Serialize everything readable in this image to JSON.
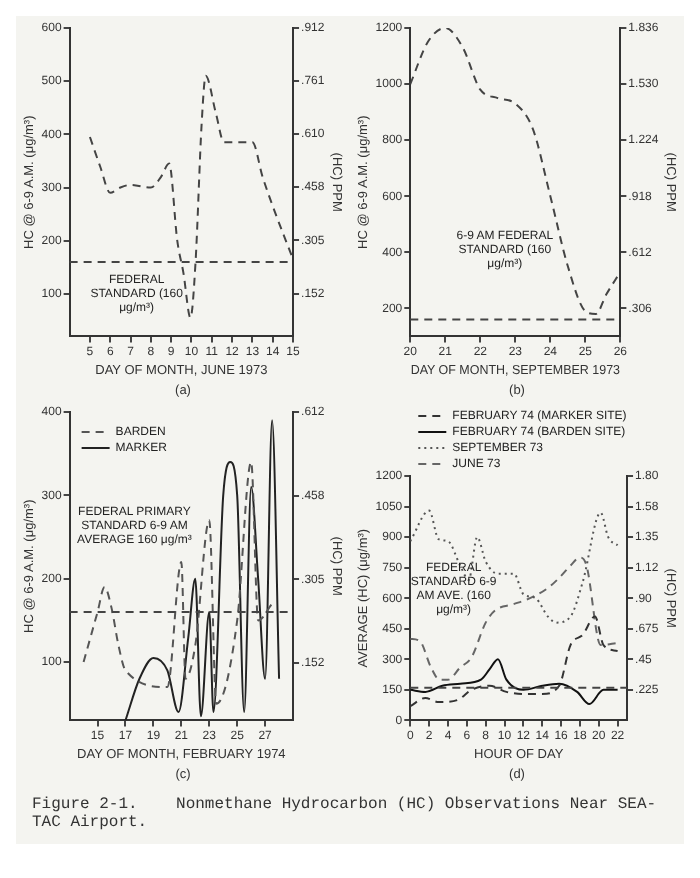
{
  "chart_data": [
    {
      "type": "line",
      "title": "(a)",
      "xlabel": "DAY OF MONTH, JUNE 1973",
      "ylabel": "HC @ 6-9 A.M. (μg/m³)",
      "y2label": "(HC) PPM",
      "line_style": "dashed",
      "series": [
        {
          "color": "#444444",
          "x": [
            5,
            5.5,
            6,
            6.5,
            7,
            8,
            8.5,
            8.9,
            9.3,
            9.6,
            9.95,
            10.2,
            10.5,
            10.7,
            11.2,
            11.6,
            12,
            13,
            13.5,
            14,
            15
          ],
          "values": [
            395,
            340,
            290,
            300,
            305,
            300,
            320,
            345,
            200,
            140,
            55,
            160,
            420,
            510,
            440,
            385,
            385,
            385,
            320,
            265,
            165
          ]
        }
      ],
      "xlim": [
        4,
        15
      ],
      "xticks": [
        5,
        6,
        7,
        8,
        9,
        10,
        11,
        12,
        13,
        14,
        15
      ],
      "ylim": [
        20,
        600
      ],
      "yticks": [
        100,
        200,
        300,
        400,
        500,
        600
      ],
      "y2lim": [
        0.0304,
        0.912
      ],
      "y2ticks": [
        {
          "value": 0.152,
          "label": ".152"
        },
        {
          "value": 0.305,
          "label": ".305"
        },
        {
          "value": 0.458,
          "label": ".458"
        },
        {
          "value": 0.61,
          "label": ".610"
        },
        {
          "value": 0.761,
          "label": ".761"
        },
        {
          "value": 0.912,
          "label": ".912"
        }
      ],
      "ref_lines": [
        {
          "axis": "y",
          "value": 160,
          "color": "#444444",
          "line_style": "dashed"
        }
      ],
      "annotations": [
        "FEDERAL STANDARD (160 μg/m³)"
      ]
    },
    {
      "type": "line",
      "title": "(b)",
      "xlabel": "DAY OF MONTH, SEPTEMBER 1973",
      "ylabel": "HC @ 6-9 A.M. (μg/m³)",
      "y2label": "(HC) PPM",
      "line_style": "dashed",
      "series": [
        {
          "color": "#444444",
          "x": [
            20,
            20.5,
            21,
            21.5,
            22,
            22.5,
            23,
            23.5,
            24,
            24.5,
            25,
            25.3,
            25.6,
            26
          ],
          "values": [
            1000,
            1150,
            1200,
            1130,
            980,
            950,
            930,
            840,
            600,
            350,
            190,
            180,
            250,
            330
          ]
        }
      ],
      "xlim": [
        20,
        26
      ],
      "xticks": [
        20,
        21,
        22,
        23,
        24,
        25,
        26
      ],
      "ylim": [
        100,
        1200
      ],
      "yticks": [
        200,
        400,
        600,
        800,
        1000,
        1200
      ],
      "y2lim": [
        0.153,
        1.836
      ],
      "y2ticks": [
        {
          "value": 0.306,
          "label": ".306"
        },
        {
          "value": 0.612,
          "label": ".612"
        },
        {
          "value": 0.918,
          "label": ".918"
        },
        {
          "value": 1.224,
          "label": "1.224"
        },
        {
          "value": 1.53,
          "label": "1.530"
        },
        {
          "value": 1.836,
          "label": "1.836"
        }
      ],
      "ref_lines": [
        {
          "axis": "y",
          "value": 160,
          "color": "#444444",
          "line_style": "dashed"
        }
      ],
      "annotations": [
        "6-9 AM FEDERAL STANDARD (160 μg/m³)"
      ]
    },
    {
      "type": "line",
      "title": "(c)",
      "xlabel": "DAY OF MONTH, FEBRUARY 1974",
      "ylabel": "HC @ 6-9 A.M. (μg/m³)",
      "y2label": "(HC) PPM",
      "legend": "top left",
      "series": [
        {
          "name": "BARDEN",
          "color": "#555555",
          "line_style": "dashed",
          "x": [
            14,
            15,
            15.5,
            16,
            16.5,
            17,
            20,
            21,
            21.3,
            22,
            23,
            23.5,
            25,
            26,
            26.5,
            27.5
          ],
          "values": [
            100,
            160,
            190,
            165,
            120,
            90,
            70,
            220,
            80,
            120,
            270,
            50,
            150,
            340,
            150,
            170
          ]
        },
        {
          "name": "MARKER",
          "color": "#222222",
          "line_style": "solid",
          "x": [
            17,
            18,
            19,
            20,
            20.8,
            21.5,
            22,
            22.4,
            23,
            23.3,
            24,
            24.5,
            25,
            25.5,
            26,
            26.5,
            27,
            27.5,
            28
          ],
          "values": [
            30,
            80,
            105,
            90,
            40,
            130,
            200,
            35,
            160,
            40,
            300,
            340,
            300,
            40,
            310,
            200,
            80,
            390,
            80
          ]
        }
      ],
      "xlim": [
        13,
        29
      ],
      "xticks": [
        15,
        17,
        19,
        21,
        23,
        25,
        27
      ],
      "ylim": [
        30,
        400
      ],
      "yticks": [
        100,
        200,
        300,
        400
      ],
      "y2lim": [
        0.0459,
        0.612
      ],
      "y2ticks": [
        {
          "value": 0.152,
          "label": ".152"
        },
        {
          "value": 0.305,
          "label": ".305"
        },
        {
          "value": 0.458,
          "label": ".458"
        },
        {
          "value": 0.612,
          "label": ".612"
        }
      ],
      "ref_lines": [
        {
          "axis": "y",
          "value": 160,
          "color": "#444444",
          "line_style": "dashed"
        }
      ],
      "annotations": [
        "FEDERAL PRIMARY STANDARD 6-9 AM AVERAGE 160 μg/m³"
      ]
    },
    {
      "type": "line",
      "title": "(d)",
      "xlabel": "HOUR OF DAY",
      "ylabel": "AVERAGE (HC) (μg/m³)",
      "y2label": "(HC) PPM",
      "legend": "top",
      "series": [
        {
          "name": "FEBRUARY 74 (MARKER SITE)",
          "color": "#333333",
          "line_style": "dashed",
          "x": [
            0,
            1.6,
            3,
            5,
            6.5,
            8.4,
            10.2,
            12,
            14,
            15.8,
            17,
            18.3,
            19.6,
            20.5,
            22
          ],
          "values": [
            70,
            110,
            90,
            100,
            150,
            170,
            140,
            130,
            130,
            170,
            370,
            420,
            510,
            370,
            340
          ]
        },
        {
          "name": "FEBRUARY 74 (BARDEN SITE)",
          "color": "#111111",
          "line_style": "solid",
          "x": [
            0,
            1.6,
            3.4,
            5.3,
            7.5,
            8.4,
            9.3,
            10.2,
            12,
            14,
            15.8,
            17.7,
            19,
            20.5,
            22
          ],
          "values": [
            150,
            140,
            170,
            180,
            200,
            250,
            300,
            200,
            150,
            170,
            180,
            140,
            80,
            150,
            150
          ]
        },
        {
          "name": "SEPTEMBER 73",
          "color": "#555555",
          "line_style": "dotted",
          "x": [
            0,
            2,
            3,
            4,
            5.3,
            6.2,
            7.1,
            8,
            9.3,
            11,
            12,
            13.3,
            14.6,
            15.5,
            17,
            18.3,
            20.2,
            21,
            22
          ],
          "values": [
            880,
            1030,
            890,
            880,
            760,
            690,
            900,
            780,
            720,
            720,
            620,
            600,
            510,
            480,
            510,
            680,
            1020,
            900,
            860
          ]
        },
        {
          "name": "JUNE 73",
          "color": "#666666",
          "line_style": "dashed",
          "x": [
            0,
            1,
            2.2,
            3.1,
            4,
            5.3,
            6.5,
            8,
            9,
            10.9,
            12.7,
            14.6,
            15.8,
            17,
            18,
            18.7,
            20.2,
            22
          ],
          "values": [
            400,
            390,
            260,
            200,
            200,
            260,
            310,
            480,
            540,
            570,
            600,
            650,
            700,
            760,
            800,
            760,
            370,
            380
          ]
        }
      ],
      "xlim": [
        0,
        23
      ],
      "xticks": [
        0,
        2,
        4,
        6,
        8,
        10,
        12,
        14,
        16,
        18,
        20,
        22
      ],
      "ylim": [
        0,
        1200
      ],
      "yticks": [
        0,
        150,
        300,
        450,
        600,
        750,
        900,
        1050,
        1200
      ],
      "y2lim": [
        0,
        1.8
      ],
      "y2ticks": [
        {
          "value": 0.225,
          "label": ".225"
        },
        {
          "value": 0.45,
          "label": ".45"
        },
        {
          "value": 0.675,
          "label": ".675"
        },
        {
          "value": 0.9,
          "label": ".90"
        },
        {
          "value": 1.125,
          "label": "1.12"
        },
        {
          "value": 1.35,
          "label": "1.35"
        },
        {
          "value": 1.575,
          "label": "1.58"
        },
        {
          "value": 1.8,
          "label": "1.80"
        }
      ],
      "ref_lines": [
        {
          "axis": "y",
          "value": 160,
          "color": "#444444",
          "line_style": "dashed"
        }
      ],
      "annotations": [
        "FEDERAL STANDARD 6-9 AM AVE. (160 μg/m³)",
        "Figure 2-1.    Nonmethane Hydrocarbon (HC) Observations Near SEA-TAC Airport."
      ]
    }
  ]
}
